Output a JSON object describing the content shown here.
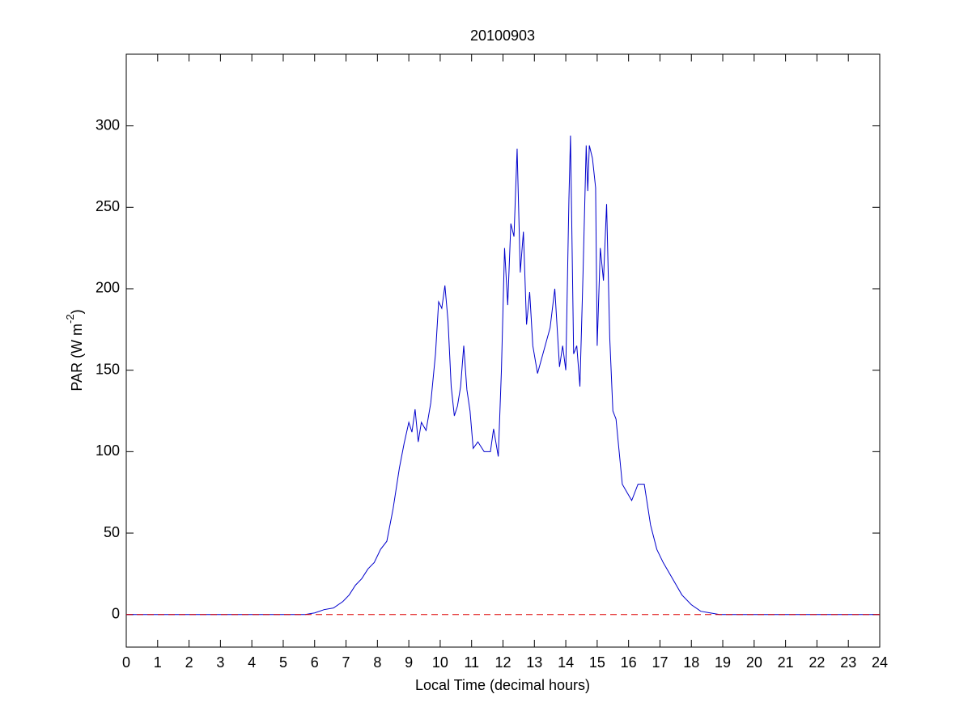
{
  "chart_data": {
    "type": "line",
    "title": "20100903",
    "xlabel": "Local Time (decimal hours)",
    "ylabel": {
      "text": "PAR (W m",
      "superscript": "-2",
      "suffix": ")"
    },
    "x": [
      0,
      5.7,
      6.0,
      6.3,
      6.6,
      6.9,
      7.1,
      7.3,
      7.5,
      7.7,
      7.9,
      8.1,
      8.3,
      8.5,
      8.7,
      8.85,
      9.0,
      9.1,
      9.2,
      9.3,
      9.4,
      9.55,
      9.7,
      9.85,
      9.95,
      10.05,
      10.15,
      10.25,
      10.35,
      10.45,
      10.55,
      10.65,
      10.75,
      10.85,
      10.95,
      11.05,
      11.2,
      11.4,
      11.6,
      11.7,
      11.85,
      11.95,
      12.05,
      12.15,
      12.25,
      12.35,
      12.45,
      12.55,
      12.65,
      12.75,
      12.85,
      12.95,
      13.1,
      13.3,
      13.5,
      13.65,
      13.8,
      13.9,
      14.0,
      14.1,
      14.15,
      14.25,
      14.35,
      14.45,
      14.55,
      14.65,
      14.7,
      14.75,
      14.85,
      14.95,
      15.0,
      15.1,
      15.2,
      15.3,
      15.4,
      15.5,
      15.6,
      15.8,
      15.95,
      16.1,
      16.3,
      16.5,
      16.7,
      16.9,
      17.1,
      17.4,
      17.7,
      18.0,
      18.3,
      18.6,
      18.9,
      24
    ],
    "values": [
      0,
      0,
      1,
      3,
      4,
      8,
      12,
      18,
      22,
      28,
      32,
      40,
      45,
      65,
      90,
      105,
      118,
      112,
      126,
      106,
      118,
      113,
      130,
      160,
      192,
      188,
      202,
      180,
      140,
      122,
      128,
      140,
      165,
      138,
      125,
      102,
      106,
      100,
      100,
      114,
      97,
      150,
      225,
      190,
      240,
      232,
      286,
      210,
      235,
      178,
      198,
      165,
      148,
      162,
      176,
      200,
      152,
      165,
      150,
      255,
      294,
      160,
      165,
      140,
      210,
      288,
      260,
      288,
      280,
      262,
      165,
      225,
      205,
      252,
      170,
      125,
      120,
      80,
      75,
      70,
      80,
      80,
      55,
      40,
      32,
      22,
      12,
      6,
      2,
      1,
      0,
      0
    ],
    "color": "#0000cc",
    "reference_line": {
      "value": 0,
      "color": "#dd0000",
      "style": "dashed"
    },
    "xlim": [
      0,
      24
    ],
    "xticks": [
      0,
      1,
      2,
      3,
      4,
      5,
      6,
      7,
      8,
      9,
      10,
      11,
      12,
      13,
      14,
      15,
      16,
      17,
      18,
      19,
      20,
      21,
      22,
      23,
      24
    ],
    "ylim": [
      -20,
      344
    ],
    "yticks": [
      0,
      50,
      100,
      150,
      200,
      250,
      300
    ]
  }
}
